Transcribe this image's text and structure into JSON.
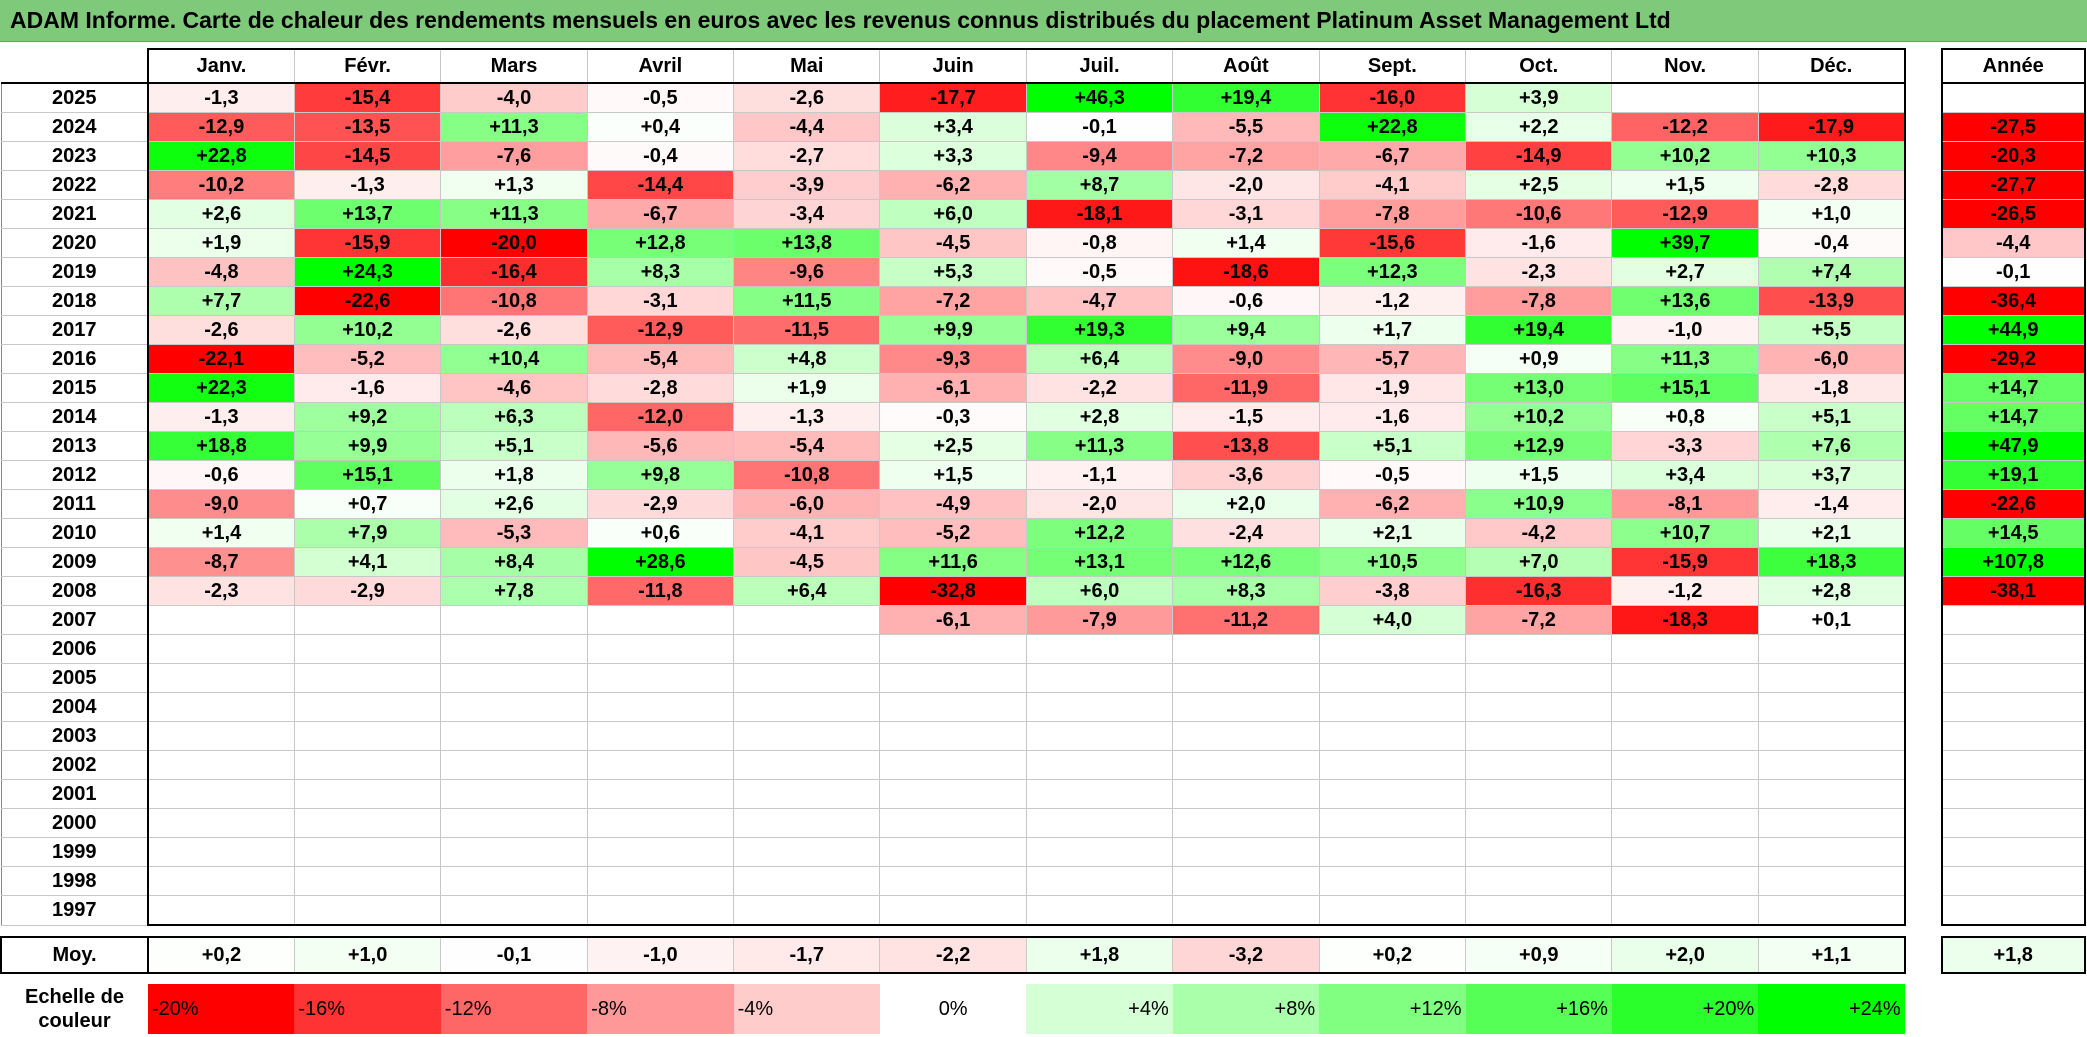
{
  "title": "ADAM Informe. Carte de chaleur des rendements mensuels en euros avec les revenus connus distribués du placement Platinum Asset Management Ltd",
  "colors": {
    "title_bg": "#7fc97a",
    "neg_max": "#ff0000",
    "pos_max": "#00ff00",
    "zero": "#ffffff"
  },
  "chart_data": {
    "type": "heatmap",
    "title": "ADAM Informe. Carte de chaleur des rendements mensuels en euros avec les revenus connus distribués du placement Platinum Asset Management Ltd",
    "months": [
      "Janv.",
      "Févr.",
      "Mars",
      "Avril",
      "Mai",
      "Juin",
      "Juil.",
      "Août",
      "Sept.",
      "Oct.",
      "Nov.",
      "Déc."
    ],
    "annual_label": "Année",
    "rows": [
      {
        "year": "2025",
        "values": [
          "-1,3",
          "-15,4",
          "-4,0",
          "-0,5",
          "-2,6",
          "-17,7",
          "+46,3",
          "+19,4",
          "-16,0",
          "+3,9",
          "",
          ""
        ],
        "annual": ""
      },
      {
        "year": "2024",
        "values": [
          "-12,9",
          "-13,5",
          "+11,3",
          "+0,4",
          "-4,4",
          "+3,4",
          "-0,1",
          "-5,5",
          "+22,8",
          "+2,2",
          "-12,2",
          "-17,9"
        ],
        "annual": "-27,5"
      },
      {
        "year": "2023",
        "values": [
          "+22,8",
          "-14,5",
          "-7,6",
          "-0,4",
          "-2,7",
          "+3,3",
          "-9,4",
          "-7,2",
          "-6,7",
          "-14,9",
          "+10,2",
          "+10,3"
        ],
        "annual": "-20,3"
      },
      {
        "year": "2022",
        "values": [
          "-10,2",
          "-1,3",
          "+1,3",
          "-14,4",
          "-3,9",
          "-6,2",
          "+8,7",
          "-2,0",
          "-4,1",
          "+2,5",
          "+1,5",
          "-2,8"
        ],
        "annual": "-27,7"
      },
      {
        "year": "2021",
        "values": [
          "+2,6",
          "+13,7",
          "+11,3",
          "-6,7",
          "-3,4",
          "+6,0",
          "-18,1",
          "-3,1",
          "-7,8",
          "-10,6",
          "-12,9",
          "+1,0"
        ],
        "annual": "-26,5"
      },
      {
        "year": "2020",
        "values": [
          "+1,9",
          "-15,9",
          "-20,0",
          "+12,8",
          "+13,8",
          "-4,5",
          "-0,8",
          "+1,4",
          "-15,6",
          "-1,6",
          "+39,7",
          "-0,4"
        ],
        "annual": "-4,4"
      },
      {
        "year": "2019",
        "values": [
          "-4,8",
          "+24,3",
          "-16,4",
          "+8,3",
          "-9,6",
          "+5,3",
          "-0,5",
          "-18,6",
          "+12,3",
          "-2,3",
          "+2,7",
          "+7,4"
        ],
        "annual": "-0,1"
      },
      {
        "year": "2018",
        "values": [
          "+7,7",
          "-22,6",
          "-10,8",
          "-3,1",
          "+11,5",
          "-7,2",
          "-4,7",
          "-0,6",
          "-1,2",
          "-7,8",
          "+13,6",
          "-13,9"
        ],
        "annual": "-36,4"
      },
      {
        "year": "2017",
        "values": [
          "-2,6",
          "+10,2",
          "-2,6",
          "-12,9",
          "-11,5",
          "+9,9",
          "+19,3",
          "+9,4",
          "+1,7",
          "+19,4",
          "-1,0",
          "+5,5"
        ],
        "annual": "+44,9"
      },
      {
        "year": "2016",
        "values": [
          "-22,1",
          "-5,2",
          "+10,4",
          "-5,4",
          "+4,8",
          "-9,3",
          "+6,4",
          "-9,0",
          "-5,7",
          "+0,9",
          "+11,3",
          "-6,0"
        ],
        "annual": "-29,2"
      },
      {
        "year": "2015",
        "values": [
          "+22,3",
          "-1,6",
          "-4,6",
          "-2,8",
          "+1,9",
          "-6,1",
          "-2,2",
          "-11,9",
          "-1,9",
          "+13,0",
          "+15,1",
          "-1,8"
        ],
        "annual": "+14,7"
      },
      {
        "year": "2014",
        "values": [
          "-1,3",
          "+9,2",
          "+6,3",
          "-12,0",
          "-1,3",
          "-0,3",
          "+2,8",
          "-1,5",
          "-1,6",
          "+10,2",
          "+0,8",
          "+5,1"
        ],
        "annual": "+14,7"
      },
      {
        "year": "2013",
        "values": [
          "+18,8",
          "+9,9",
          "+5,1",
          "-5,6",
          "-5,4",
          "+2,5",
          "+11,3",
          "-13,8",
          "+5,1",
          "+12,9",
          "-3,3",
          "+7,6"
        ],
        "annual": "+47,9"
      },
      {
        "year": "2012",
        "values": [
          "-0,6",
          "+15,1",
          "+1,8",
          "+9,8",
          "-10,8",
          "+1,5",
          "-1,1",
          "-3,6",
          "-0,5",
          "+1,5",
          "+3,4",
          "+3,7"
        ],
        "annual": "+19,1"
      },
      {
        "year": "2011",
        "values": [
          "-9,0",
          "+0,7",
          "+2,6",
          "-2,9",
          "-6,0",
          "-4,9",
          "-2,0",
          "+2,0",
          "-6,2",
          "+10,9",
          "-8,1",
          "-1,4"
        ],
        "annual": "-22,6"
      },
      {
        "year": "2010",
        "values": [
          "+1,4",
          "+7,9",
          "-5,3",
          "+0,6",
          "-4,1",
          "-5,2",
          "+12,2",
          "-2,4",
          "+2,1",
          "-4,2",
          "+10,7",
          "+2,1"
        ],
        "annual": "+14,5"
      },
      {
        "year": "2009",
        "values": [
          "-8,7",
          "+4,1",
          "+8,4",
          "+28,6",
          "-4,5",
          "+11,6",
          "+13,1",
          "+12,6",
          "+10,5",
          "+7,0",
          "-15,9",
          "+18,3"
        ],
        "annual": "+107,8"
      },
      {
        "year": "2008",
        "values": [
          "-2,3",
          "-2,9",
          "+7,8",
          "-11,8",
          "+6,4",
          "-32,8",
          "+6,0",
          "+8,3",
          "-3,8",
          "-16,3",
          "-1,2",
          "+2,8"
        ],
        "annual": "-38,1"
      },
      {
        "year": "2007",
        "values": [
          "",
          "",
          "",
          "",
          "",
          "-6,1",
          "-7,9",
          "-11,2",
          "+4,0",
          "-7,2",
          "-18,3",
          "+0,1"
        ],
        "annual": ""
      },
      {
        "year": "2006",
        "values": [
          "",
          "",
          "",
          "",
          "",
          "",
          "",
          "",
          "",
          "",
          "",
          ""
        ],
        "annual": ""
      },
      {
        "year": "2005",
        "values": [
          "",
          "",
          "",
          "",
          "",
          "",
          "",
          "",
          "",
          "",
          "",
          ""
        ],
        "annual": ""
      },
      {
        "year": "2004",
        "values": [
          "",
          "",
          "",
          "",
          "",
          "",
          "",
          "",
          "",
          "",
          "",
          ""
        ],
        "annual": ""
      },
      {
        "year": "2003",
        "values": [
          "",
          "",
          "",
          "",
          "",
          "",
          "",
          "",
          "",
          "",
          "",
          ""
        ],
        "annual": ""
      },
      {
        "year": "2002",
        "values": [
          "",
          "",
          "",
          "",
          "",
          "",
          "",
          "",
          "",
          "",
          "",
          ""
        ],
        "annual": ""
      },
      {
        "year": "2001",
        "values": [
          "",
          "",
          "",
          "",
          "",
          "",
          "",
          "",
          "",
          "",
          "",
          ""
        ],
        "annual": ""
      },
      {
        "year": "2000",
        "values": [
          "",
          "",
          "",
          "",
          "",
          "",
          "",
          "",
          "",
          "",
          "",
          ""
        ],
        "annual": ""
      },
      {
        "year": "1999",
        "values": [
          "",
          "",
          "",
          "",
          "",
          "",
          "",
          "",
          "",
          "",
          "",
          ""
        ],
        "annual": ""
      },
      {
        "year": "1998",
        "values": [
          "",
          "",
          "",
          "",
          "",
          "",
          "",
          "",
          "",
          "",
          "",
          ""
        ],
        "annual": ""
      },
      {
        "year": "1997",
        "values": [
          "",
          "",
          "",
          "",
          "",
          "",
          "",
          "",
          "",
          "",
          "",
          ""
        ],
        "annual": ""
      }
    ],
    "average": {
      "label": "Moy.",
      "values": [
        "+0,2",
        "+1,0",
        "-0,1",
        "-1,0",
        "-1,7",
        "-2,2",
        "+1,8",
        "-3,2",
        "+0,2",
        "+0,9",
        "+2,0",
        "+1,1"
      ],
      "annual": "+1,8"
    },
    "scale": {
      "label": "Echelle de couleur",
      "steps": [
        {
          "label": "-20%",
          "value": -20
        },
        {
          "label": "-16%",
          "value": -16
        },
        {
          "label": "-12%",
          "value": -12
        },
        {
          "label": "-8%",
          "value": -8
        },
        {
          "label": "-4%",
          "value": -4
        },
        {
          "label": "0%",
          "value": 0
        },
        {
          "label": "+4%",
          "value": 4
        },
        {
          "label": "+8%",
          "value": 8
        },
        {
          "label": "+12%",
          "value": 12
        },
        {
          "label": "+16%",
          "value": 16
        },
        {
          "label": "+20%",
          "value": 20
        },
        {
          "label": "+24%",
          "value": 24
        }
      ]
    }
  }
}
